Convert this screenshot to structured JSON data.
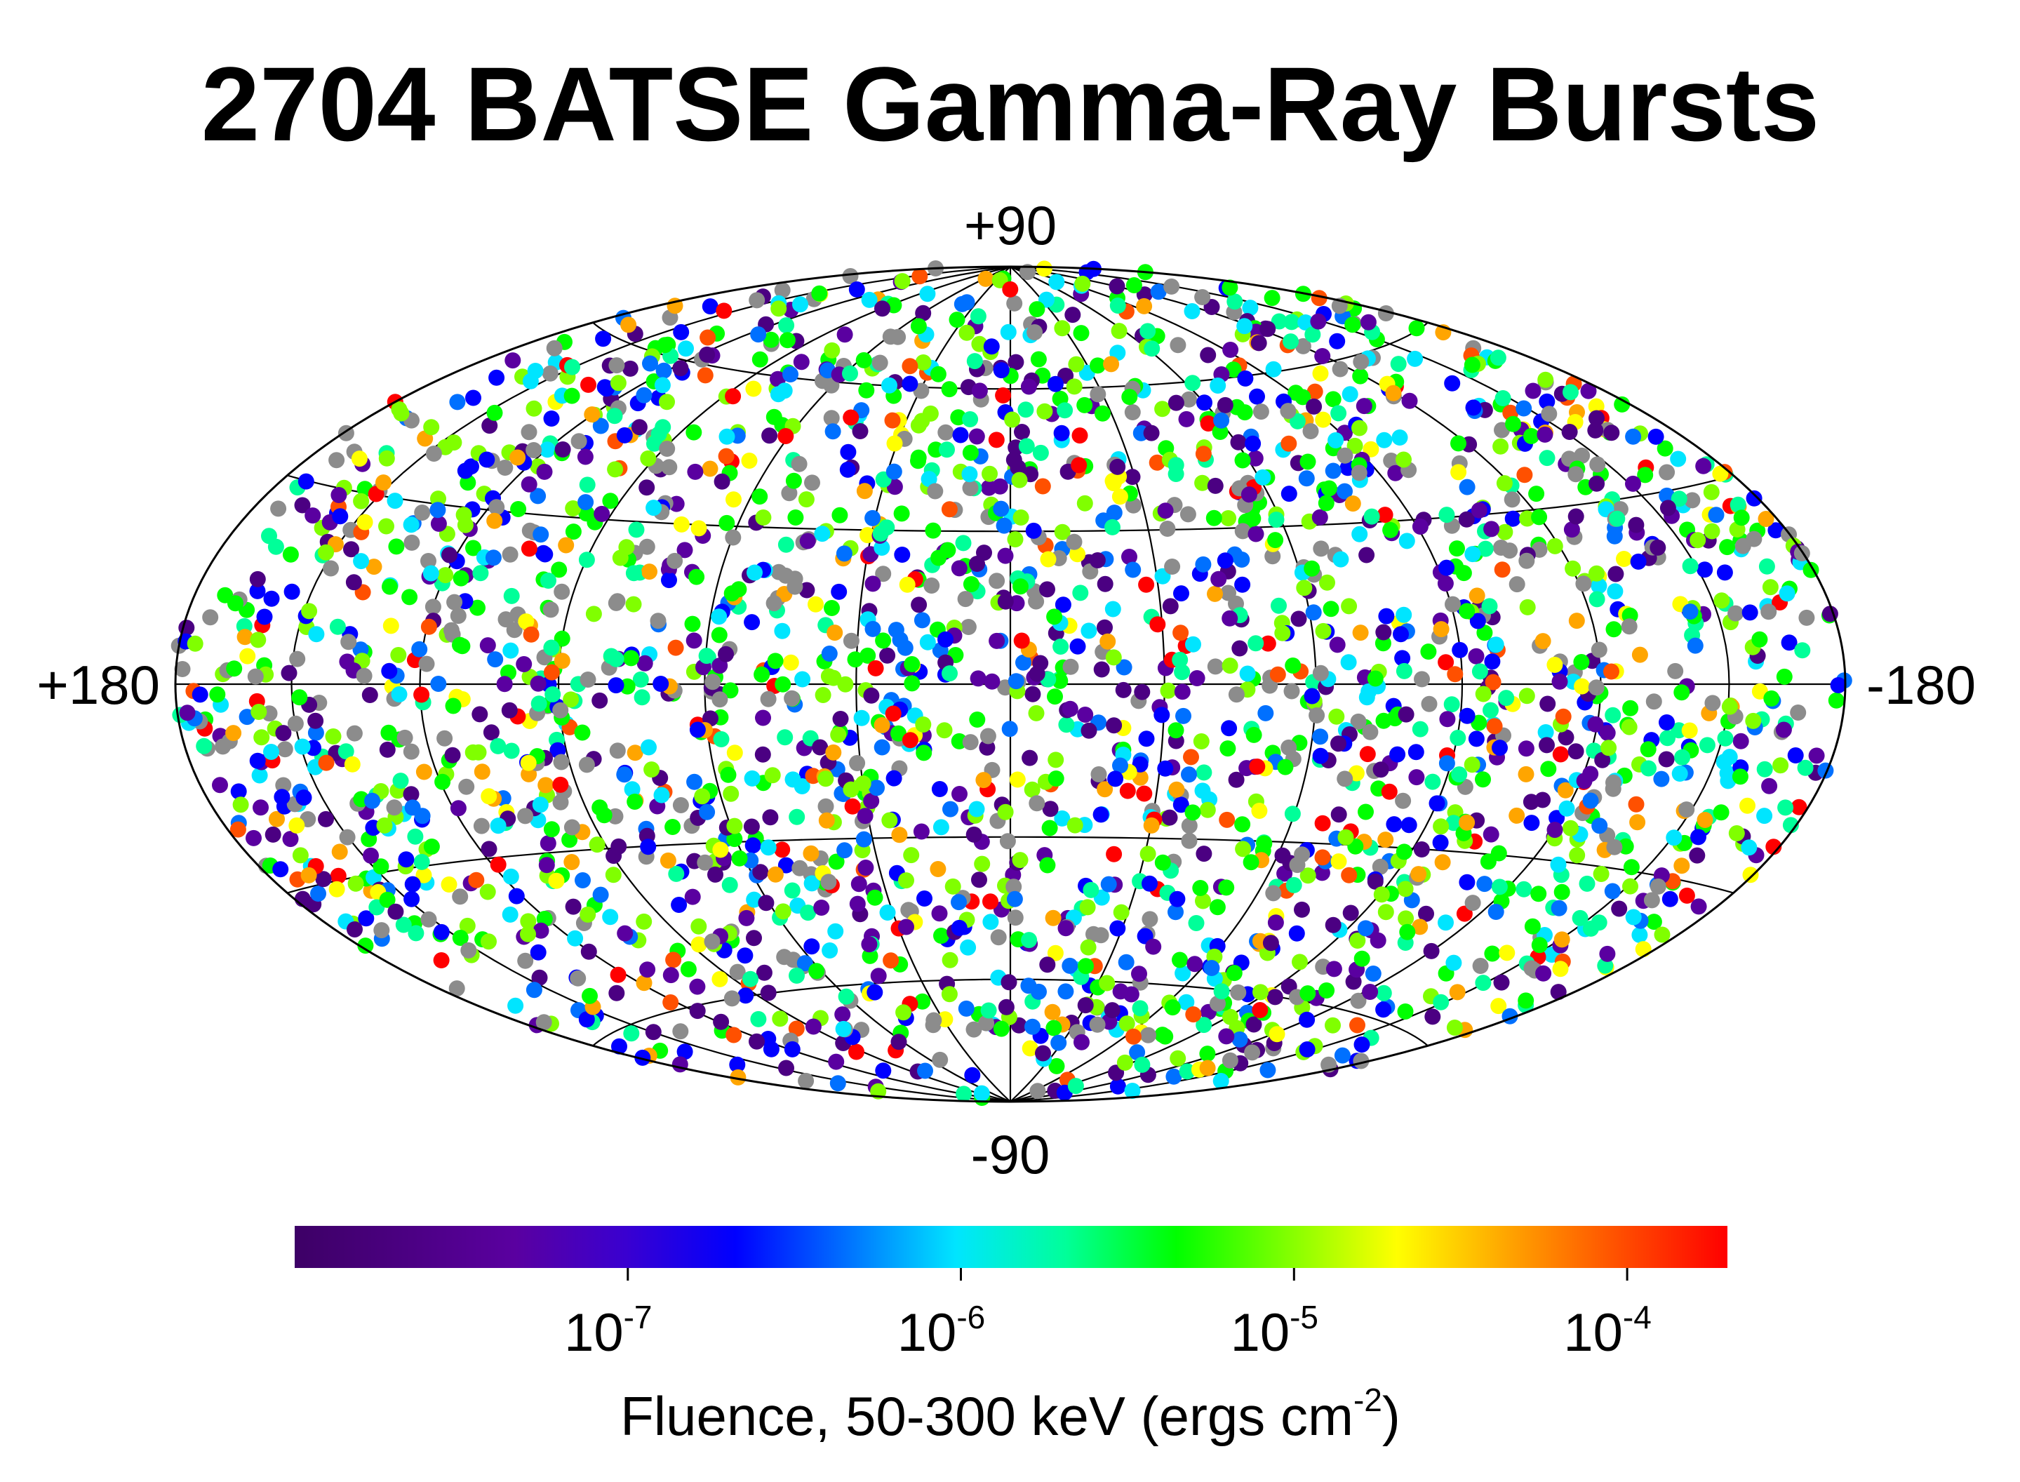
{
  "chart_data": {
    "type": "scatter",
    "projection": "Aitoff / Hammer all-sky ellipse",
    "title": "2704 BATSE Gamma-Ray Bursts",
    "axis_labels": {
      "top": "+90",
      "bottom": "-90",
      "left": "+180",
      "right": "-180"
    },
    "longitude_range": [
      180,
      -180
    ],
    "latitude_range": [
      -90,
      90
    ],
    "grid": true,
    "graticule": {
      "meridians_deg": [
        -150,
        -120,
        -90,
        -60,
        -30,
        0,
        30,
        60,
        90,
        120,
        150
      ],
      "parallels_deg": [
        -60,
        -30,
        0,
        30,
        60
      ]
    },
    "burst_count": 2704,
    "marker_colors": [
      "#4b0082",
      "#5a00a0",
      "#0000ff",
      "#0070ff",
      "#00e5ff",
      "#00ff99",
      "#00ff00",
      "#80ff00",
      "#ffff00",
      "#ffa500",
      "#ff5000",
      "#ff0000",
      "#8c8c8c"
    ],
    "colorbar": {
      "label_main": "Fluence, 50-300 keV (ergs cm",
      "label_exp": "-2",
      "label_close": ")",
      "scale": "log",
      "range": [
        1e-08,
        0.0002
      ],
      "ticks": [
        {
          "base": "10",
          "exp": "-7",
          "value": 1e-07
        },
        {
          "base": "10",
          "exp": "-6",
          "value": 1e-06
        },
        {
          "base": "10",
          "exp": "-5",
          "value": 1e-05
        },
        {
          "base": "10",
          "exp": "-4",
          "value": 0.0001
        }
      ],
      "colors": [
        "#3d0066",
        "#4b0082",
        "#5a00a0",
        "#3a00d0",
        "#0000ff",
        "#0070ff",
        "#00e5ff",
        "#00ff99",
        "#00ff00",
        "#80ff00",
        "#ffff00",
        "#ffa500",
        "#ff5000",
        "#ff0000"
      ]
    }
  }
}
